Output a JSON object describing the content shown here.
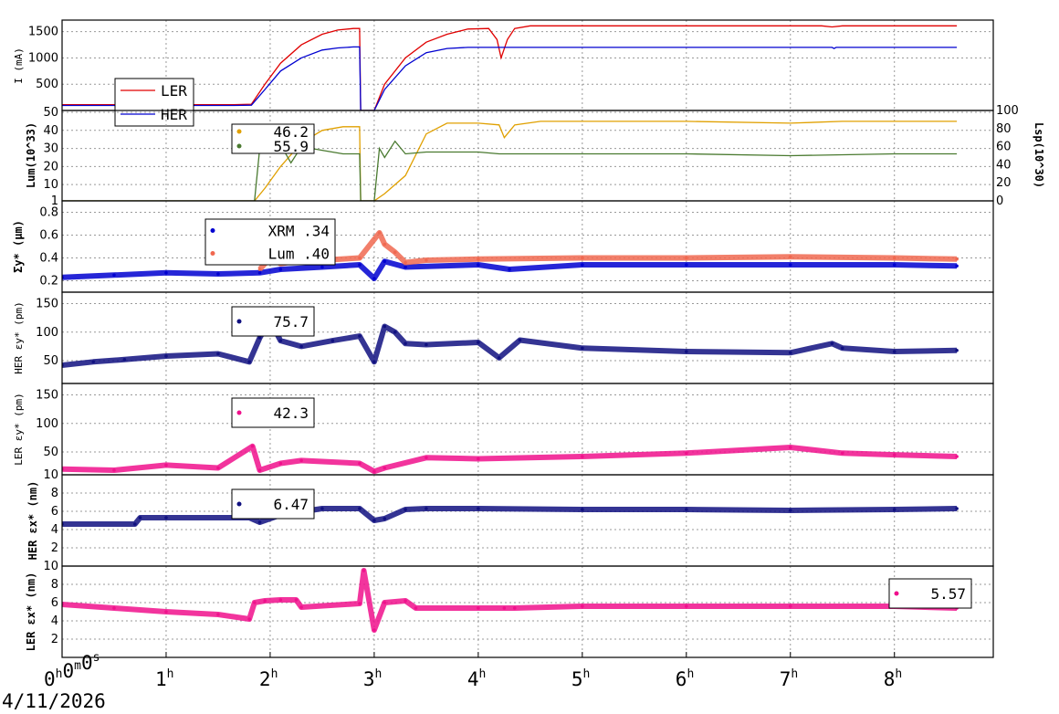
{
  "date": "4/11/2026",
  "x_ticks": [
    "0h0m0s",
    "1h",
    "2h",
    "3h",
    "4h",
    "5h",
    "6h",
    "7h",
    "8h"
  ],
  "colors": {
    "red": "#e00000",
    "blue": "#0000d0",
    "gold": "#e0a000",
    "green": "#4a7a30",
    "orange": "#f06850",
    "navy": "#101080",
    "magenta": "#f0108c"
  },
  "chart_data": [
    {
      "type": "line",
      "ylabel": "I (mA)",
      "yticks": [
        "500",
        "1000",
        "1500"
      ],
      "ylim": [
        0,
        1720
      ],
      "x_unit": "hours",
      "legend": [
        {
          "name": "LER",
          "color": "#e00000"
        },
        {
          "name": "HER",
          "color": "#0000d0"
        }
      ],
      "series": [
        {
          "name": "LER",
          "color": "#e00000",
          "x": [
            0,
            1.65,
            1.82,
            1.95,
            2.1,
            2.3,
            2.5,
            2.65,
            2.8,
            2.86,
            2.87,
            3.0,
            3.1,
            3.3,
            3.5,
            3.7,
            3.9,
            4.1,
            4.18,
            4.22,
            4.28,
            4.35,
            4.5,
            6,
            7,
            7.3,
            7.4,
            7.5,
            8,
            8.6
          ],
          "y": [
            110,
            110,
            120,
            500,
            900,
            1250,
            1450,
            1530,
            1560,
            1560,
            0,
            0,
            500,
            1000,
            1300,
            1450,
            1550,
            1560,
            1350,
            1000,
            1350,
            1560,
            1610,
            1610,
            1610,
            1610,
            1590,
            1610,
            1610,
            1610
          ]
        },
        {
          "name": "HER",
          "color": "#0000d0",
          "x": [
            0,
            1.65,
            1.82,
            1.95,
            2.1,
            2.3,
            2.5,
            2.65,
            2.8,
            2.86,
            2.87,
            3.0,
            3.1,
            3.3,
            3.5,
            3.7,
            3.9,
            4.2,
            4.5,
            6,
            7.4,
            7.42,
            7.44,
            8.6
          ],
          "y": [
            95,
            95,
            100,
            400,
            750,
            1000,
            1150,
            1190,
            1210,
            1210,
            0,
            0,
            400,
            850,
            1100,
            1180,
            1200,
            1200,
            1200,
            1200,
            1200,
            1180,
            1200,
            1200
          ]
        }
      ]
    },
    {
      "type": "line",
      "ylabel": "Lum(10^33)",
      "ylabel_right": "Lsp(10^30)",
      "yticks": [
        "1",
        "10",
        "20",
        "30",
        "40",
        "50"
      ],
      "yticks_right": [
        "0",
        "20",
        "40",
        "60",
        "80",
        "100"
      ],
      "ylim": [
        1,
        51
      ],
      "legend": [
        {
          "color": "#e0a000",
          "value": "46.2"
        },
        {
          "color": "#4a7a30",
          "value": "55.9"
        }
      ],
      "series": [
        {
          "name": "Lum",
          "color": "#e0a000",
          "x": [
            0,
            1.85,
            1.95,
            2.1,
            2.3,
            2.5,
            2.7,
            2.86,
            2.87,
            3.0,
            3.1,
            3.3,
            3.5,
            3.7,
            4.0,
            4.2,
            4.25,
            4.35,
            4.6,
            5,
            6,
            7,
            7.5,
            8,
            8.6
          ],
          "y": [
            1,
            1,
            8,
            20,
            33,
            40,
            42,
            42,
            1,
            1,
            5,
            15,
            38,
            44,
            44,
            43,
            36,
            43,
            45,
            45,
            45,
            44,
            45,
            45,
            45
          ]
        },
        {
          "name": "Lsp",
          "color": "#4a7a30",
          "x": [
            0,
            1.85,
            1.9,
            1.95,
            2.0,
            2.1,
            2.2,
            2.3,
            2.5,
            2.7,
            2.86,
            2.87,
            3.0,
            3.05,
            3.1,
            3.2,
            3.3,
            3.5,
            4,
            4.2,
            4.3,
            5,
            6,
            7,
            8,
            8.6
          ],
          "y": [
            1,
            1,
            30,
            35,
            28,
            32,
            22,
            31,
            29,
            27,
            27,
            1,
            1,
            30,
            25,
            34,
            27,
            28,
            28,
            27,
            27,
            27,
            27,
            26,
            27,
            27
          ]
        }
      ]
    },
    {
      "type": "scatter",
      "ylabel": "Σy* (μm)",
      "yticks": [
        "0.2",
        "0.4",
        "0.6",
        "0.8"
      ],
      "ylim": [
        0.1,
        0.9
      ],
      "legend": [
        {
          "name": "XRM",
          "value": ".34",
          "color": "#0000d0"
        },
        {
          "name": "Lum",
          "value": ".40",
          "color": "#f06850"
        }
      ],
      "series": [
        {
          "name": "XRM",
          "color": "#0000d0",
          "x": [
            0,
            0.5,
            1,
            1.5,
            1.9,
            2.1,
            2.5,
            2.86,
            3.0,
            3.1,
            3.3,
            4,
            4.3,
            5,
            6,
            7,
            8,
            8.6
          ],
          "y": [
            0.23,
            0.25,
            0.27,
            0.26,
            0.27,
            0.3,
            0.32,
            0.34,
            0.22,
            0.37,
            0.32,
            0.34,
            0.3,
            0.34,
            0.34,
            0.34,
            0.34,
            0.33
          ]
        },
        {
          "name": "Lum",
          "color": "#f06850",
          "x": [
            1.9,
            2.0,
            2.1,
            2.3,
            2.5,
            2.86,
            3.05,
            3.1,
            3.2,
            3.3,
            3.5,
            4,
            5,
            6,
            7,
            8,
            8.6
          ],
          "y": [
            0.3,
            0.4,
            0.35,
            0.38,
            0.38,
            0.4,
            0.62,
            0.52,
            0.45,
            0.36,
            0.38,
            0.39,
            0.4,
            0.4,
            0.41,
            0.4,
            0.39
          ]
        }
      ]
    },
    {
      "type": "scatter",
      "ylabel": "HER εy* (pm)",
      "yticks": [
        "50",
        "100",
        "150"
      ],
      "ylim": [
        10,
        170
      ],
      "legend": [
        {
          "value": "75.7",
          "color": "#101080"
        }
      ],
      "series": [
        {
          "name": "HER εy*",
          "color": "#101080",
          "x": [
            0,
            0.3,
            0.6,
            1,
            1.5,
            1.8,
            1.9,
            2.0,
            2.1,
            2.3,
            2.6,
            2.86,
            3.0,
            3.1,
            3.2,
            3.3,
            3.5,
            4,
            4.2,
            4.4,
            5,
            6,
            7,
            7.4,
            7.5,
            8,
            8.6
          ],
          "y": [
            42,
            48,
            52,
            58,
            62,
            48,
            90,
            120,
            85,
            75,
            85,
            93,
            48,
            110,
            100,
            80,
            78,
            82,
            55,
            86,
            72,
            66,
            64,
            80,
            72,
            66,
            68
          ]
        }
      ]
    },
    {
      "type": "scatter",
      "ylabel": "LER εy* (pm)",
      "yticks": [
        "10",
        "50",
        "100",
        "150"
      ],
      "ylim": [
        10,
        170
      ],
      "legend": [
        {
          "value": "42.3",
          "color": "#f0108c"
        }
      ],
      "series": [
        {
          "name": "LER εy*",
          "color": "#f0108c",
          "x": [
            0,
            0.5,
            1,
            1.5,
            1.83,
            1.9,
            2.1,
            2.3,
            2.86,
            3.0,
            3.1,
            3.5,
            4,
            5,
            6,
            7,
            7.5,
            8,
            8.6
          ],
          "y": [
            20,
            18,
            27,
            22,
            60,
            18,
            30,
            35,
            30,
            16,
            22,
            40,
            38,
            42,
            48,
            58,
            48,
            45,
            42
          ]
        }
      ]
    },
    {
      "type": "scatter",
      "ylabel": "HER εx* (nm)",
      "yticks": [
        "2",
        "4",
        "6",
        "8"
      ],
      "ylim": [
        0,
        10
      ],
      "legend": [
        {
          "value": "6.47",
          "color": "#101080"
        }
      ],
      "series": [
        {
          "name": "HER εx*",
          "color": "#101080",
          "x": [
            0,
            0.7,
            0.75,
            1,
            1.8,
            1.9,
            2.1,
            2.5,
            2.86,
            3.0,
            3.1,
            3.3,
            3.5,
            4,
            5,
            6,
            7,
            8,
            8.6
          ],
          "y": [
            4.6,
            4.6,
            5.3,
            5.3,
            5.3,
            4.8,
            5.6,
            6.3,
            6.3,
            5.0,
            5.2,
            6.2,
            6.3,
            6.3,
            6.2,
            6.2,
            6.1,
            6.2,
            6.3
          ]
        }
      ]
    },
    {
      "type": "scatter",
      "ylabel": "LER εx* (nm)",
      "yticks": [
        "2",
        "4",
        "6",
        "8",
        "10"
      ],
      "ylim": [
        0,
        10
      ],
      "legend": [
        {
          "value": "5.57",
          "color": "#f0108c"
        }
      ],
      "series": [
        {
          "name": "LER εx*",
          "color": "#f0108c",
          "x": [
            0,
            0.5,
            1,
            1.5,
            1.8,
            1.85,
            1.95,
            2.1,
            2.25,
            2.3,
            2.86,
            2.9,
            3.0,
            3.1,
            3.3,
            3.4,
            4,
            4.25,
            4.35,
            5,
            6,
            7,
            8,
            8.6
          ],
          "y": [
            5.8,
            5.4,
            5.0,
            4.7,
            4.2,
            6.0,
            6.2,
            6.3,
            6.3,
            5.5,
            5.9,
            9.5,
            3.0,
            6.0,
            6.2,
            5.4,
            5.4,
            5.4,
            5.4,
            5.6,
            5.6,
            5.6,
            5.6,
            5.4
          ]
        }
      ]
    }
  ]
}
